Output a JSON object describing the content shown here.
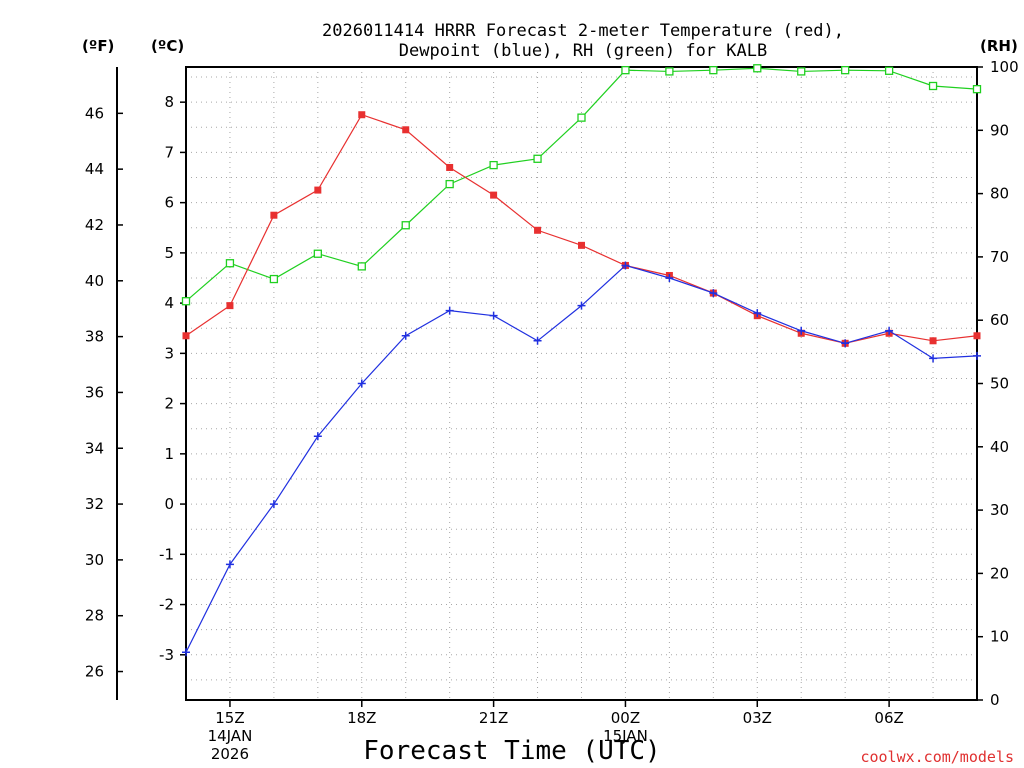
{
  "chart_data": {
    "type": "line",
    "title_line1": "2026011414 HRRR Forecast 2-meter Temperature (red),",
    "title_line2": "Dewpoint (blue), RH (green) for KALB",
    "xlabel": "Forecast Time (UTC)",
    "credit": "coolwx.com/models",
    "units": {
      "fahrenheit": "(ºF)",
      "celsius": "(ºC)",
      "rh": "(RH)"
    },
    "x": [
      14,
      15,
      16,
      17,
      18,
      19,
      20,
      21,
      22,
      23,
      24,
      25,
      26,
      27,
      28,
      29,
      30,
      31,
      32
    ],
    "x_range": [
      14,
      32
    ],
    "ylim_c": [
      -3.9,
      8.7
    ],
    "ylim_rh": [
      0,
      100
    ],
    "x_ticks": [
      {
        "x": 15,
        "label": "15Z",
        "sub1": "14JAN",
        "sub2": "2026"
      },
      {
        "x": 18,
        "label": "18Z",
        "sub1": "",
        "sub2": ""
      },
      {
        "x": 21,
        "label": "21Z",
        "sub1": "",
        "sub2": ""
      },
      {
        "x": 24,
        "label": "00Z",
        "sub1": "15JAN",
        "sub2": ""
      },
      {
        "x": 27,
        "label": "03Z",
        "sub1": "",
        "sub2": ""
      },
      {
        "x": 30,
        "label": "06Z",
        "sub1": "",
        "sub2": ""
      }
    ],
    "c_ticks": [
      "-3",
      "-2",
      "-1",
      "0",
      "1",
      "2",
      "3",
      "4",
      "5",
      "6",
      "7",
      "8"
    ],
    "f_ticks": [
      "26",
      "28",
      "30",
      "32",
      "34",
      "36",
      "38",
      "40",
      "42",
      "44",
      "46"
    ],
    "rh_ticks": [
      "0",
      "10",
      "20",
      "30",
      "40",
      "50",
      "60",
      "70",
      "80",
      "90",
      "100"
    ],
    "series": [
      {
        "name": "Temperature",
        "unit": "C",
        "color": "#e83030",
        "marker": "filled-square",
        "values": [
          3.35,
          3.95,
          5.75,
          6.25,
          7.75,
          7.45,
          6.7,
          6.15,
          5.45,
          5.15,
          4.75,
          4.55,
          4.2,
          3.75,
          3.4,
          3.2,
          3.4,
          3.25,
          3.35
        ]
      },
      {
        "name": "Dewpoint",
        "unit": "C",
        "color": "#2030e0",
        "marker": "plus",
        "values": [
          -2.95,
          -1.2,
          0.0,
          1.35,
          2.4,
          3.35,
          3.85,
          3.75,
          3.25,
          3.95,
          4.75,
          4.5,
          4.2,
          3.8,
          3.45,
          3.2,
          3.45,
          2.9,
          2.95
        ]
      },
      {
        "name": "RH",
        "unit": "%",
        "color": "#20d020",
        "marker": "open-square",
        "values": [
          63,
          69,
          66.5,
          70.5,
          68.5,
          75,
          81.5,
          84.5,
          85.5,
          92,
          99.5,
          99.3,
          99.5,
          99.8,
          99.3,
          99.5,
          99.4,
          97,
          96.5
        ]
      }
    ]
  }
}
